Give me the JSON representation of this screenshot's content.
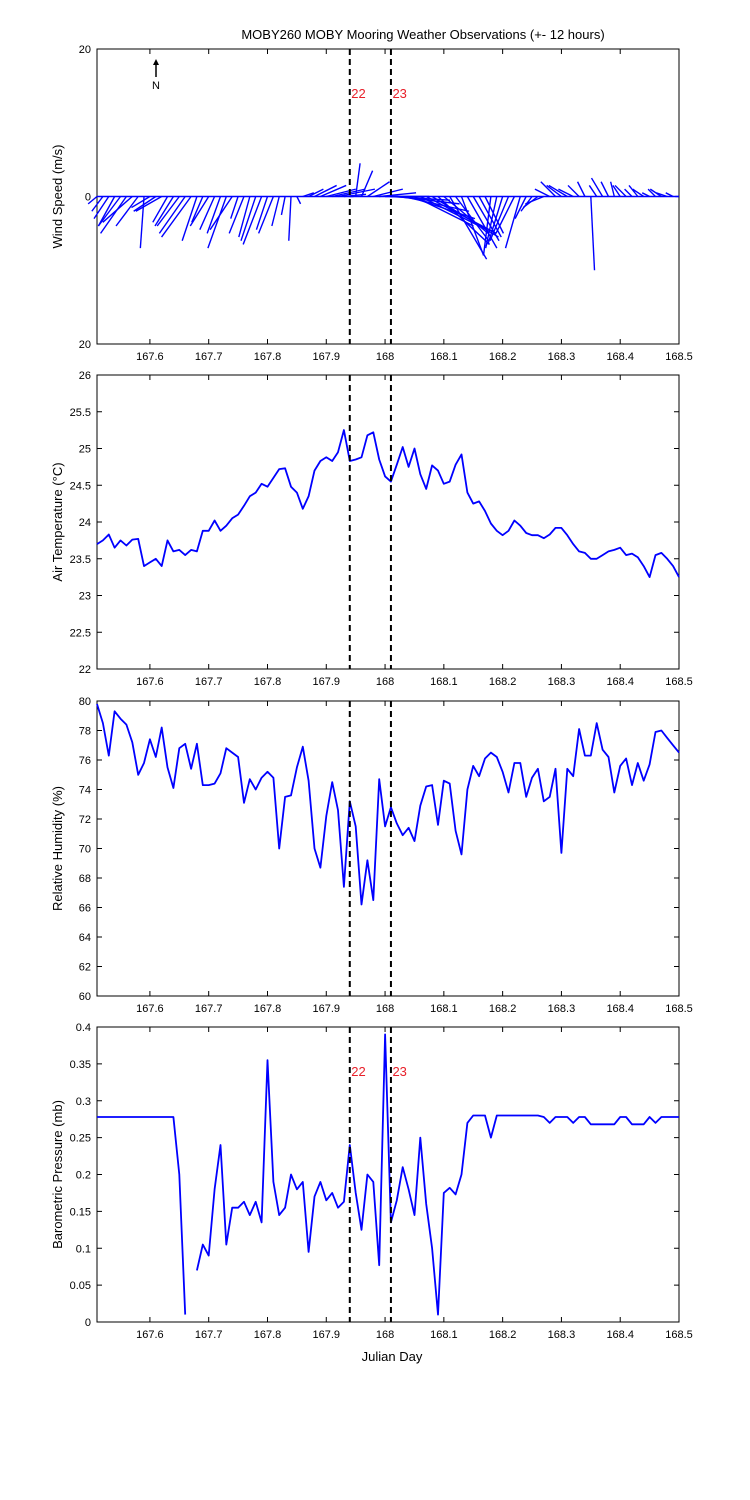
{
  "title": "MOBY260 MOBY Mooring Weather Observations (+- 12 hours)",
  "xlabel": "Julian Day",
  "north_label": "N",
  "colors": {
    "series": "#0000ff",
    "marker_text": "#e8202a",
    "axis": "#000000"
  },
  "markers": [
    {
      "x": 167.94,
      "label": "22"
    },
    {
      "x": 168.01,
      "label": "23"
    }
  ],
  "chart_data": [
    {
      "type": "vector",
      "ylabel": "Wind Speed (m/s)",
      "xlim": [
        167.51,
        168.5
      ],
      "ylim": [
        -20,
        20
      ],
      "ytick_values": [
        20,
        0,
        -20
      ],
      "ytick_labels": [
        "20",
        "0",
        "20"
      ],
      "xtick_labels": [
        "167.6",
        "167.7",
        "167.8",
        "167.9",
        "168",
        "168.1",
        "168.2",
        "168.3",
        "168.4",
        "168.5"
      ],
      "show_marker_labels": true,
      "show_north_arrow": true,
      "x": [
        167.51,
        167.52,
        167.53,
        167.54,
        167.55,
        167.56,
        167.57,
        167.58,
        167.59,
        167.6,
        167.61,
        167.62,
        167.63,
        167.64,
        167.65,
        167.66,
        167.67,
        167.68,
        167.69,
        167.7,
        167.71,
        167.72,
        167.73,
        167.74,
        167.75,
        167.76,
        167.77,
        167.78,
        167.79,
        167.8,
        167.81,
        167.82,
        167.83,
        167.84,
        167.85,
        167.86,
        167.87,
        167.88,
        167.89,
        167.9,
        167.91,
        167.92,
        167.93,
        167.94,
        167.95,
        167.96,
        167.97,
        167.98,
        167.99,
        168.0,
        168.01,
        168.02,
        168.03,
        168.04,
        168.05,
        168.06,
        168.07,
        168.08,
        168.09,
        168.1,
        168.11,
        168.12,
        168.13,
        168.14,
        168.15,
        168.16,
        168.17,
        168.18,
        168.19,
        168.2,
        168.21,
        168.22,
        168.23,
        168.24,
        168.25,
        168.26,
        168.27,
        168.28,
        168.29,
        168.3,
        168.31,
        168.32,
        168.33,
        168.34,
        168.35,
        168.36,
        168.37,
        168.38,
        168.39,
        168.4,
        168.41,
        168.42,
        168.43,
        168.44,
        168.45,
        168.46,
        168.47,
        168.48,
        168.49,
        168.5
      ],
      "u": [
        -1.2,
        -1.5,
        -2.0,
        -2.2,
        -3.0,
        -3.5,
        -4.0,
        -3.0,
        -0.5,
        -2.5,
        -3.0,
        -3.5,
        -2.0,
        -2.5,
        -3.0,
        -3.5,
        -4.0,
        -2.0,
        -1.5,
        -2.5,
        -2.0,
        -1.8,
        -2.5,
        -3.0,
        -1.0,
        -2.0,
        -1.5,
        -2.0,
        -2.5,
        -1.5,
        -2.0,
        -1.0,
        -0.5,
        -0.3,
        0.5,
        1.5,
        2.0,
        3.0,
        3.5,
        4.0,
        4.5,
        5.0,
        3.0,
        0.5,
        0.6,
        1.5,
        3.0,
        4.0,
        5.0,
        6.0,
        8.0,
        8.5,
        9.0,
        9.0,
        8.0,
        9.0,
        9.5,
        9.0,
        7.0,
        6.0,
        5.0,
        4.5,
        3.0,
        4.0,
        3.5,
        3.0,
        2.5,
        -1.0,
        -1.5,
        -2.0,
        -2.5,
        -2.5,
        -2.0,
        -1.5,
        -1.5,
        -2.0,
        -2.5,
        -2.0,
        -2.0,
        -2.0,
        -2.5,
        -2.0,
        -1.5,
        -1.0,
        0.5,
        -1.0,
        -1.5,
        -1.0,
        -0.5,
        -1.0,
        -1.5,
        -1.0,
        -1.2,
        -1.5,
        -1.0,
        -1.0,
        -1.5,
        -1.5,
        -1.0,
        -0.5
      ],
      "v": [
        -1.0,
        -2.0,
        -3.0,
        -4.0,
        -4.0,
        -5.0,
        -3.5,
        -4.0,
        -7.0,
        -1.5,
        -2.0,
        -2.0,
        -3.5,
        -4.0,
        -4.0,
        -5.0,
        -5.5,
        -6.0,
        -3.5,
        -4.0,
        -4.5,
        -5.0,
        -7.0,
        -4.5,
        -3.0,
        -5.0,
        -5.5,
        -6.0,
        -6.5,
        -4.5,
        -5.0,
        -4.0,
        -2.5,
        -6.0,
        -1.0,
        0.5,
        1.0,
        1.5,
        1.5,
        1.0,
        1.0,
        1.0,
        0.3,
        0.0,
        4.5,
        3.5,
        2.0,
        1.0,
        0.5,
        0.0,
        -0.5,
        -1.0,
        -2.0,
        -3.0,
        -4.0,
        -4.5,
        -5.0,
        -5.5,
        -6.5,
        -5.0,
        -8.5,
        -6.0,
        -8.0,
        -7.0,
        -6.0,
        -5.5,
        -5.0,
        -8.0,
        -7.0,
        -6.5,
        -6.0,
        -5.0,
        -7.0,
        -3.0,
        -2.0,
        -1.5,
        -1.0,
        1.0,
        2.0,
        1.5,
        1.5,
        1.0,
        1.5,
        2.0,
        -10.0,
        1.5,
        2.5,
        2.0,
        2.0,
        1.5,
        1.5,
        1.0,
        1.5,
        1.0,
        0.5,
        1.0,
        1.0,
        0.5,
        0.5,
        0.0
      ]
    },
    {
      "type": "line",
      "ylabel": "Air Temperature (°C)",
      "xlim": [
        167.51,
        168.5
      ],
      "ylim": [
        22,
        26
      ],
      "ytick_values": [
        22,
        22.5,
        23,
        23.5,
        24,
        24.5,
        25,
        25.5,
        26
      ],
      "ytick_labels": [
        "22",
        "22.5",
        "23",
        "23.5",
        "24",
        "24.5",
        "25",
        "25.5",
        "26"
      ],
      "xtick_labels": [
        "167.6",
        "167.7",
        "167.8",
        "167.9",
        "168",
        "168.1",
        "168.2",
        "168.3",
        "168.4",
        "168.5"
      ],
      "show_marker_labels": false,
      "show_north_arrow": false,
      "x": [
        167.51,
        167.52,
        167.53,
        167.54,
        167.55,
        167.56,
        167.57,
        167.58,
        167.59,
        167.6,
        167.61,
        167.62,
        167.63,
        167.64,
        167.65,
        167.66,
        167.67,
        167.68,
        167.69,
        167.7,
        167.71,
        167.72,
        167.73,
        167.74,
        167.75,
        167.76,
        167.77,
        167.78,
        167.79,
        167.8,
        167.81,
        167.82,
        167.83,
        167.84,
        167.85,
        167.86,
        167.87,
        167.88,
        167.89,
        167.9,
        167.91,
        167.92,
        167.93,
        167.94,
        167.95,
        167.96,
        167.97,
        167.98,
        167.99,
        168.0,
        168.01,
        168.02,
        168.03,
        168.04,
        168.05,
        168.06,
        168.07,
        168.08,
        168.09,
        168.1,
        168.11,
        168.12,
        168.13,
        168.14,
        168.15,
        168.16,
        168.17,
        168.18,
        168.19,
        168.2,
        168.21,
        168.22,
        168.23,
        168.24,
        168.25,
        168.26,
        168.27,
        168.28,
        168.29,
        168.3,
        168.31,
        168.32,
        168.33,
        168.34,
        168.35,
        168.36,
        168.37,
        168.38,
        168.39,
        168.4,
        168.41,
        168.42,
        168.43,
        168.44,
        168.45,
        168.46,
        168.47,
        168.48,
        168.49,
        168.5
      ],
      "y": [
        23.7,
        23.75,
        23.83,
        23.65,
        23.75,
        23.68,
        23.76,
        23.77,
        23.4,
        23.45,
        23.5,
        23.4,
        23.75,
        23.6,
        23.62,
        23.55,
        23.62,
        23.6,
        23.88,
        23.88,
        24.02,
        23.88,
        23.95,
        24.05,
        24.1,
        24.22,
        24.35,
        24.4,
        24.52,
        24.48,
        24.6,
        24.72,
        24.73,
        24.48,
        24.4,
        24.18,
        24.35,
        24.7,
        24.83,
        24.88,
        24.83,
        24.95,
        25.25,
        24.83,
        24.85,
        24.88,
        25.18,
        25.22,
        24.85,
        24.62,
        24.55,
        24.78,
        25.02,
        24.75,
        25.0,
        24.65,
        24.45,
        24.77,
        24.7,
        24.52,
        24.55,
        24.78,
        24.92,
        24.4,
        24.25,
        24.28,
        24.15,
        23.98,
        23.88,
        23.82,
        23.88,
        24.02,
        23.95,
        23.85,
        23.82,
        23.82,
        23.78,
        23.83,
        23.92,
        23.92,
        23.82,
        23.7,
        23.6,
        23.58,
        23.5,
        23.5,
        23.55,
        23.6,
        23.62,
        23.65,
        23.55,
        23.57,
        23.52,
        23.4,
        23.25,
        23.55,
        23.58,
        23.5,
        23.4,
        23.25
      ]
    },
    {
      "type": "line",
      "ylabel": "Relative Humidity (%)",
      "xlim": [
        167.51,
        168.5
      ],
      "ylim": [
        60,
        80
      ],
      "ytick_values": [
        60,
        62,
        64,
        66,
        68,
        70,
        72,
        74,
        76,
        78,
        80
      ],
      "ytick_labels": [
        "60",
        "62",
        "64",
        "66",
        "68",
        "70",
        "72",
        "74",
        "76",
        "78",
        "80"
      ],
      "xtick_labels": [
        "167.6",
        "167.7",
        "167.8",
        "167.9",
        "168",
        "168.1",
        "168.2",
        "168.3",
        "168.4",
        "168.5"
      ],
      "show_marker_labels": false,
      "show_north_arrow": false,
      "x": [
        167.51,
        167.52,
        167.53,
        167.54,
        167.55,
        167.56,
        167.57,
        167.58,
        167.59,
        167.6,
        167.61,
        167.62,
        167.63,
        167.64,
        167.65,
        167.66,
        167.67,
        167.68,
        167.69,
        167.7,
        167.71,
        167.72,
        167.73,
        167.74,
        167.75,
        167.76,
        167.77,
        167.78,
        167.79,
        167.8,
        167.81,
        167.82,
        167.83,
        167.84,
        167.85,
        167.86,
        167.87,
        167.88,
        167.89,
        167.9,
        167.91,
        167.92,
        167.93,
        167.94,
        167.95,
        167.96,
        167.97,
        167.98,
        167.99,
        168.0,
        168.01,
        168.02,
        168.03,
        168.04,
        168.05,
        168.06,
        168.07,
        168.08,
        168.09,
        168.1,
        168.11,
        168.12,
        168.13,
        168.14,
        168.15,
        168.16,
        168.17,
        168.18,
        168.19,
        168.2,
        168.21,
        168.22,
        168.23,
        168.24,
        168.25,
        168.26,
        168.27,
        168.28,
        168.29,
        168.3,
        168.31,
        168.32,
        168.33,
        168.34,
        168.35,
        168.36,
        168.37,
        168.38,
        168.39,
        168.4,
        168.41,
        168.42,
        168.43,
        168.44,
        168.45,
        168.46,
        168.47,
        168.48,
        168.49,
        168.5
      ],
      "y": [
        79.8,
        78.5,
        76.3,
        79.3,
        78.8,
        78.4,
        77.2,
        75.0,
        75.8,
        77.4,
        76.2,
        78.2,
        75.5,
        74.1,
        76.8,
        77.1,
        75.4,
        77.1,
        74.3,
        74.3,
        74.4,
        75.1,
        76.8,
        76.5,
        76.2,
        73.1,
        74.7,
        74.0,
        74.8,
        75.2,
        74.8,
        70.0,
        73.5,
        73.6,
        75.5,
        76.9,
        74.6,
        70.0,
        68.7,
        72.2,
        74.5,
        72.6,
        67.4,
        73.2,
        71.5,
        66.2,
        69.2,
        66.5,
        74.7,
        71.5,
        72.8,
        71.7,
        70.9,
        71.4,
        70.5,
        72.9,
        74.2,
        74.3,
        71.6,
        74.6,
        74.4,
        71.2,
        69.6,
        74.0,
        75.6,
        74.9,
        76.1,
        76.5,
        76.2,
        75.2,
        73.8,
        75.8,
        75.8,
        73.5,
        74.8,
        75.4,
        73.2,
        73.5,
        75.4,
        69.7,
        75.4,
        74.9,
        78.1,
        76.3,
        76.3,
        78.5,
        76.7,
        76.2,
        73.8,
        75.6,
        76.1,
        74.3,
        75.8,
        74.6,
        75.7,
        77.9,
        78.0,
        77.5,
        77.0,
        76.5
      ]
    },
    {
      "type": "line",
      "ylabel": "Barometric Pressure (mb)",
      "xlim": [
        167.51,
        168.5
      ],
      "ylim": [
        0,
        0.4
      ],
      "ytick_values": [
        0,
        0.05,
        0.1,
        0.15,
        0.2,
        0.25,
        0.3,
        0.35,
        0.4
      ],
      "ytick_labels": [
        "0",
        "0.05",
        "0.1",
        "0.15",
        "0.2",
        "0.25",
        "0.3",
        "0.35",
        "0.4"
      ],
      "xtick_labels": [
        "167.6",
        "167.7",
        "167.8",
        "167.9",
        "168",
        "168.1",
        "168.2",
        "168.3",
        "168.4",
        "168.5"
      ],
      "show_marker_labels": true,
      "show_north_arrow": false,
      "segments": [
        {
          "x": [
            167.51,
            167.52,
            167.53,
            167.54,
            167.55,
            167.56,
            167.57,
            167.58,
            167.59,
            167.6,
            167.61,
            167.62,
            167.63,
            167.64,
            167.65,
            167.66
          ],
          "y": [
            0.278,
            0.278,
            0.278,
            0.278,
            0.278,
            0.278,
            0.278,
            0.278,
            0.278,
            0.278,
            0.278,
            0.278,
            0.278,
            0.278,
            0.2,
            0.01
          ]
        },
        {
          "x": [
            167.68,
            167.69,
            167.7,
            167.71,
            167.72,
            167.73,
            167.74,
            167.75,
            167.76,
            167.77,
            167.78,
            167.79,
            167.8,
            167.81,
            167.82,
            167.83,
            167.84,
            167.85,
            167.86,
            167.87,
            167.88,
            167.89,
            167.9,
            167.91,
            167.92,
            167.93,
            167.94,
            167.95,
            167.96,
            167.97,
            167.98,
            167.99,
            168.0,
            168.01,
            168.02,
            168.03,
            168.04,
            168.05,
            168.06,
            168.07,
            168.08,
            168.09,
            168.1,
            168.11,
            168.12,
            168.13,
            168.14,
            168.15,
            168.16,
            168.17,
            168.18,
            168.19,
            168.2,
            168.21,
            168.22,
            168.23,
            168.24,
            168.25,
            168.26,
            168.27,
            168.28,
            168.29,
            168.3,
            168.31,
            168.32,
            168.33,
            168.34,
            168.35,
            168.36,
            168.37,
            168.38,
            168.39,
            168.4,
            168.41,
            168.42,
            168.43,
            168.44,
            168.45,
            168.46,
            168.47,
            168.48,
            168.49,
            168.5
          ],
          "y": [
            0.07,
            0.105,
            0.09,
            0.18,
            0.24,
            0.105,
            0.155,
            0.155,
            0.163,
            0.145,
            0.163,
            0.135,
            0.355,
            0.19,
            0.145,
            0.155,
            0.2,
            0.18,
            0.19,
            0.095,
            0.17,
            0.19,
            0.165,
            0.175,
            0.155,
            0.163,
            0.24,
            0.175,
            0.125,
            0.2,
            0.19,
            0.077,
            0.39,
            0.135,
            0.165,
            0.21,
            0.18,
            0.145,
            0.25,
            0.16,
            0.1,
            0.01,
            0.175,
            0.182,
            0.173,
            0.2,
            0.27,
            0.28,
            0.28,
            0.28,
            0.25,
            0.28,
            0.28,
            0.28,
            0.28,
            0.28,
            0.28,
            0.28,
            0.28,
            0.278,
            0.27,
            0.278,
            0.278,
            0.278,
            0.27,
            0.278,
            0.278,
            0.268,
            0.268,
            0.268,
            0.268,
            0.268,
            0.278,
            0.278,
            0.268,
            0.268,
            0.268,
            0.278,
            0.27,
            0.278,
            0.278,
            0.278,
            0.278
          ]
        }
      ]
    }
  ]
}
